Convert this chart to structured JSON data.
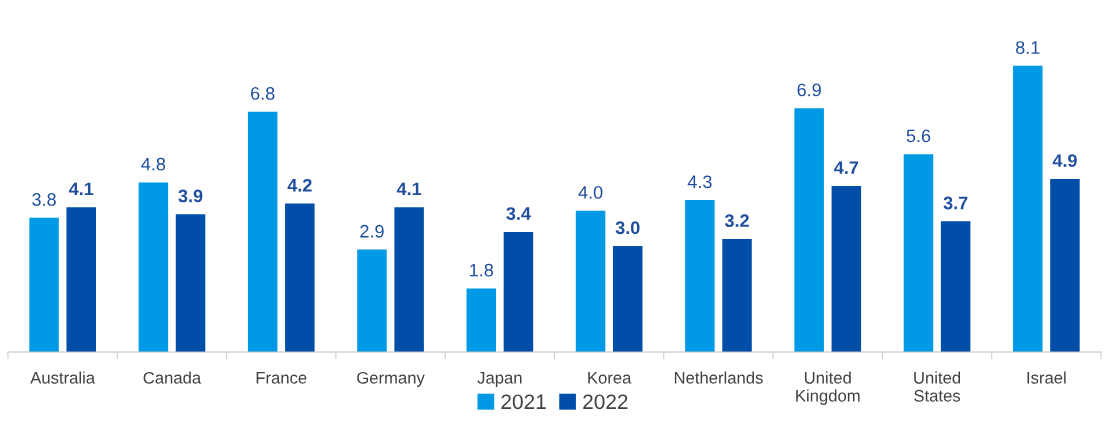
{
  "chart_data": {
    "type": "bar",
    "categories": [
      "Australia",
      "Canada",
      "France",
      "Germany",
      "Japan",
      "Korea",
      "Netherlands",
      "United\nKingdom",
      "United\nStates",
      "Israel"
    ],
    "series": [
      {
        "name": "2021",
        "color": "#0099e6",
        "values": [
          3.8,
          4.8,
          6.8,
          2.9,
          1.8,
          4.0,
          4.3,
          6.9,
          5.6,
          8.1
        ],
        "value_labels": [
          "3.8",
          "4.8",
          "6.8",
          "2.9",
          "1.8",
          "4.0",
          "4.3",
          "6.9",
          "5.6",
          "8.1"
        ]
      },
      {
        "name": "2022",
        "color": "#004ea8",
        "values": [
          4.1,
          3.9,
          4.2,
          4.1,
          3.4,
          3.0,
          3.2,
          4.7,
          3.7,
          4.9
        ],
        "value_labels": [
          "4.1",
          "3.9",
          "4.2",
          "4.1",
          "3.4",
          "3.0",
          "3.2",
          "4.7",
          "3.7",
          "4.9"
        ]
      }
    ],
    "grid": false,
    "legend": "bottom"
  }
}
